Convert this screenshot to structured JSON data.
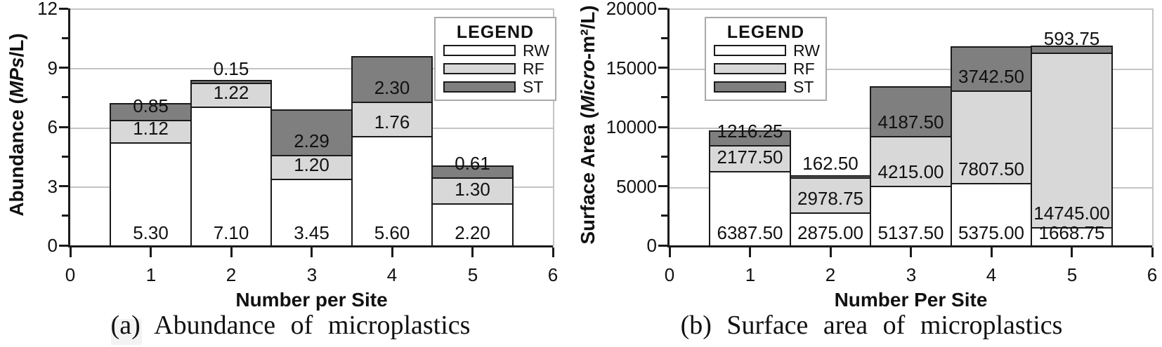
{
  "palette": {
    "RW": "#ffffff",
    "RF": "#d8d8d8",
    "ST": "#7f7f7f",
    "bar_border": "#1a1a1a",
    "axis": "#1a1a1a",
    "grid": "#c4c4c4",
    "legend_border": "#a9a9a9",
    "text": "#111111"
  },
  "chart_data": [
    {
      "type": "bar",
      "stacked": true,
      "caption": "(a) Abundance of microplastics",
      "xlabel": "Number per Site",
      "ylabel": "Abundance (MPs/L)",
      "ylabel_parts": [
        {
          "text": "Abundance (",
          "italic": false
        },
        {
          "text": "MPs",
          "italic": true
        },
        {
          "text": "/L)",
          "italic": false
        }
      ],
      "x": [
        1,
        2,
        3,
        4,
        5
      ],
      "xlim": [
        0,
        6
      ],
      "xticks": [
        "0",
        "1",
        "2",
        "3",
        "4",
        "5",
        "6"
      ],
      "ylim": [
        0,
        12
      ],
      "yticks": [
        0,
        3,
        6,
        9,
        12
      ],
      "ytick_labels": [
        "0",
        "3",
        "6",
        "9",
        "12"
      ],
      "y_minor_step": 1.5,
      "grid": "horizontal-major",
      "legend": {
        "title": "LEGEND",
        "entries": [
          "RW",
          "RF",
          "ST"
        ],
        "position": "top-right"
      },
      "series": [
        {
          "name": "RW",
          "values": [
            5.3,
            7.1,
            3.45,
            5.6,
            2.2
          ],
          "labels": [
            "5.30",
            "7.10",
            "3.45",
            "5.60",
            "2.20"
          ]
        },
        {
          "name": "RF",
          "values": [
            1.12,
            1.22,
            1.2,
            1.76,
            1.3
          ],
          "labels": [
            "1.12",
            "1.22",
            "1.20",
            "1.76",
            "1.30"
          ]
        },
        {
          "name": "ST",
          "values": [
            0.85,
            0.15,
            2.29,
            2.3,
            0.61
          ],
          "labels": [
            "0.85",
            "0.15",
            "2.29",
            "2.30",
            "0.61"
          ]
        }
      ]
    },
    {
      "type": "bar",
      "stacked": true,
      "caption": "(b) Surface area of microplastics",
      "xlabel": "Number Per Site",
      "ylabel": "Surface Area (Micro-m²/L)",
      "ylabel_parts": [
        {
          "text": "Surface Area (",
          "italic": false
        },
        {
          "text": "Micro",
          "italic": true
        },
        {
          "text": "-m²/L)",
          "italic": false
        }
      ],
      "x": [
        1,
        2,
        3,
        4,
        5
      ],
      "xlim": [
        0,
        6
      ],
      "xticks": [
        "0",
        "1",
        "2",
        "3",
        "4",
        "5",
        "6"
      ],
      "ylim": [
        0,
        20000
      ],
      "yticks": [
        0,
        5000,
        10000,
        15000,
        20000
      ],
      "ytick_labels": [
        "0",
        "5000",
        "10000",
        "15000",
        "20000"
      ],
      "y_minor_step": 2500,
      "grid": "horizontal-major",
      "legend": {
        "title": "LEGEND",
        "entries": [
          "RW",
          "RF",
          "ST"
        ],
        "position": "top-left"
      },
      "series": [
        {
          "name": "RW",
          "values": [
            6387.5,
            2875.0,
            5137.5,
            5375.0,
            1668.75
          ],
          "labels": [
            "6387.50",
            "2875.00",
            "5137.50",
            "5375.00",
            "1668.75"
          ]
        },
        {
          "name": "RF",
          "values": [
            2177.5,
            2978.75,
            4215.0,
            7807.5,
            14745.0
          ],
          "labels": [
            "2177.50",
            "2978.75",
            "4215.00",
            "7807.50",
            "14745.00"
          ]
        },
        {
          "name": "ST",
          "values": [
            1216.25,
            162.5,
            4187.5,
            3742.5,
            593.75
          ],
          "labels": [
            "1216.25",
            "162.50",
            "4187.50",
            "3742.50",
            "593.75"
          ]
        }
      ]
    }
  ]
}
